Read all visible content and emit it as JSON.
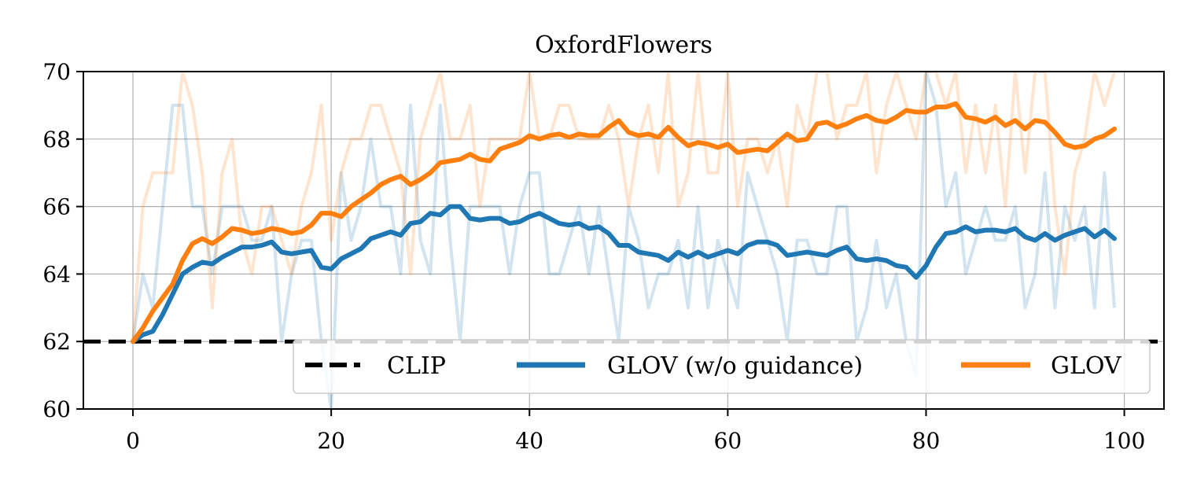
{
  "chart_data": {
    "type": "line",
    "title": "OxfordFlowers",
    "xlabel": "",
    "ylabel": "",
    "xlim": [
      -5,
      104
    ],
    "ylim": [
      60,
      70
    ],
    "xticks": [
      0,
      20,
      40,
      60,
      80,
      100
    ],
    "yticks": [
      60,
      62,
      64,
      66,
      68,
      70
    ],
    "grid": true,
    "legend_position": "lower-right",
    "baseline": {
      "name": "CLIP",
      "value": 62,
      "color": "#000000",
      "style": "dashed"
    },
    "series": [
      {
        "name": "GLOV (w/o guidance)",
        "color": "#1f77b4",
        "values": [
          62.0,
          62.2,
          62.3,
          62.8,
          63.4,
          64.0,
          64.2,
          64.35,
          64.3,
          64.5,
          64.65,
          64.8,
          64.8,
          64.85,
          64.95,
          64.65,
          64.6,
          64.65,
          64.7,
          64.2,
          64.15,
          64.45,
          64.6,
          64.75,
          65.05,
          65.15,
          65.25,
          65.15,
          65.5,
          65.55,
          65.8,
          65.75,
          66.0,
          66.0,
          65.65,
          65.6,
          65.65,
          65.65,
          65.5,
          65.55,
          65.7,
          65.8,
          65.65,
          65.5,
          65.45,
          65.5,
          65.35,
          65.4,
          65.2,
          64.85,
          64.85,
          64.65,
          64.6,
          64.55,
          64.4,
          64.65,
          64.5,
          64.65,
          64.5,
          64.6,
          64.7,
          64.6,
          64.85,
          64.95,
          64.95,
          64.85,
          64.55,
          64.6,
          64.65,
          64.6,
          64.55,
          64.7,
          64.8,
          64.45,
          64.4,
          64.45,
          64.4,
          64.25,
          64.2,
          63.9,
          64.25,
          64.8,
          65.2,
          65.25,
          65.4,
          65.25,
          65.3,
          65.3,
          65.25,
          65.35,
          65.1,
          65.0,
          65.2,
          65.0,
          65.15,
          65.25,
          65.35,
          65.1,
          65.3,
          65.05
        ]
      },
      {
        "name": "GLOV",
        "color": "#ff7f0e",
        "values": [
          62.0,
          62.4,
          62.9,
          63.3,
          63.7,
          64.4,
          64.9,
          65.05,
          64.9,
          65.1,
          65.35,
          65.3,
          65.2,
          65.25,
          65.35,
          65.3,
          65.2,
          65.25,
          65.45,
          65.8,
          65.8,
          65.7,
          66.0,
          66.2,
          66.4,
          66.65,
          66.8,
          66.9,
          66.65,
          66.8,
          67.0,
          67.3,
          67.35,
          67.4,
          67.55,
          67.4,
          67.35,
          67.7,
          67.8,
          67.9,
          68.1,
          68.0,
          68.1,
          68.15,
          68.05,
          68.15,
          68.1,
          68.1,
          68.35,
          68.55,
          68.2,
          68.1,
          68.15,
          68.05,
          68.35,
          68.05,
          67.8,
          67.9,
          67.85,
          67.75,
          67.85,
          67.6,
          67.65,
          67.7,
          67.65,
          67.9,
          68.15,
          67.95,
          68.0,
          68.45,
          68.5,
          68.35,
          68.45,
          68.6,
          68.7,
          68.55,
          68.5,
          68.65,
          68.85,
          68.8,
          68.8,
          68.95,
          68.95,
          69.05,
          68.65,
          68.6,
          68.5,
          68.65,
          68.4,
          68.55,
          68.3,
          68.55,
          68.5,
          68.2,
          67.85,
          67.75,
          67.8,
          68.0,
          68.1,
          68.3
        ]
      }
    ],
    "raw_series": [
      {
        "of": "GLOV (w/o guidance)",
        "color": "#1f77b4",
        "values": [
          62,
          64,
          63,
          66,
          69,
          69,
          66,
          66,
          64,
          66,
          66,
          66,
          65,
          65,
          66,
          62,
          64,
          65,
          65,
          62,
          60,
          67,
          65,
          66,
          68,
          66,
          66,
          64,
          69,
          65,
          64,
          69,
          65,
          62,
          66,
          66,
          66,
          66,
          64,
          66,
          67,
          67,
          64,
          64,
          65,
          66,
          64,
          66,
          64,
          62,
          66,
          65,
          63,
          64,
          64,
          65,
          63,
          66,
          63,
          65,
          64,
          63,
          67,
          66,
          65,
          64,
          62,
          65,
          65,
          64,
          64,
          66,
          66,
          62,
          63,
          65,
          63,
          64,
          62,
          61,
          70,
          69,
          66,
          67,
          64,
          65,
          66,
          65,
          65,
          66,
          63,
          64,
          67,
          63,
          66,
          65,
          66,
          63,
          67,
          63
        ]
      },
      {
        "of": "GLOV",
        "color": "#ff7f0e",
        "values": [
          62,
          66,
          67,
          67,
          67,
          70,
          69,
          67,
          63,
          67,
          68,
          65,
          64,
          66,
          66,
          65,
          64,
          66,
          67,
          69,
          65,
          67,
          68,
          68,
          69,
          69,
          68,
          67,
          64,
          68,
          69,
          70,
          68,
          68,
          69,
          66,
          68,
          68,
          68,
          68,
          70,
          68,
          68,
          69,
          69,
          68,
          68,
          68,
          69,
          68,
          66,
          68,
          69,
          67,
          70,
          66,
          67,
          70,
          67,
          67,
          70,
          66,
          68,
          68,
          67,
          68,
          66,
          69,
          68,
          70,
          70,
          68,
          69,
          69,
          70,
          67,
          69,
          70,
          69,
          68,
          70,
          70,
          69,
          70,
          67,
          69,
          67,
          69,
          66,
          70,
          67,
          70,
          70,
          66,
          64,
          67,
          68,
          70,
          69,
          70
        ]
      }
    ]
  }
}
